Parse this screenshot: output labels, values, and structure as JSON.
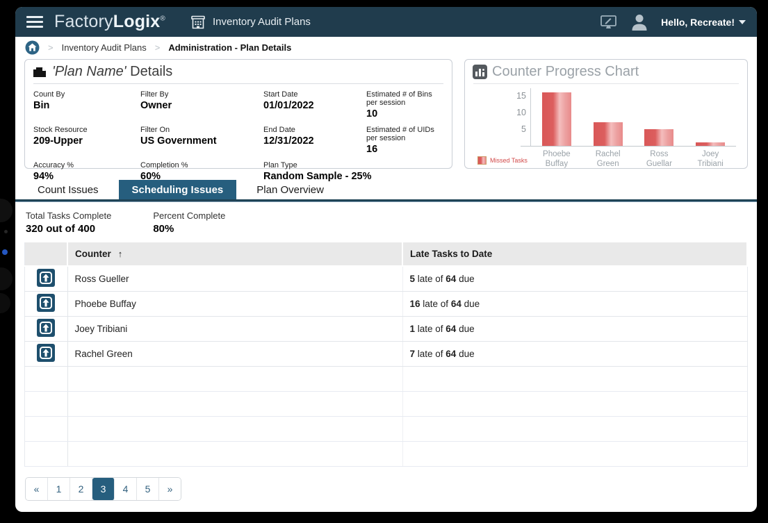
{
  "header": {
    "logo_factory": "Factory",
    "logo_logix": "Logix",
    "logo_reg": "®",
    "module_title": "Inventory Audit Plans",
    "greeting": "Hello, Recreate!"
  },
  "breadcrumb": {
    "separator": ">",
    "parent": "Inventory Audit Plans",
    "current": "Administration - Plan Details"
  },
  "details_panel": {
    "title_plan": "'Plan Name'",
    "title_rest": " Details",
    "fields": [
      {
        "label": "Count By",
        "value": "Bin"
      },
      {
        "label": "Filter By",
        "value": "Owner"
      },
      {
        "label": "Start Date",
        "value": "01/01/2022"
      },
      {
        "label": "Estimated # of Bins per session",
        "value": "10"
      },
      {
        "label": "Stock Resource",
        "value": "209-Upper"
      },
      {
        "label": "Filter On",
        "value": "US Government"
      },
      {
        "label": "End Date",
        "value": "12/31/2022"
      },
      {
        "label": "Estimated # of UIDs per session",
        "value": "16"
      },
      {
        "label": "Accuracy %",
        "value": "94%"
      },
      {
        "label": "Completion %",
        "value": "60%"
      },
      {
        "label": "Plan Type",
        "value": "Random Sample - 25%"
      }
    ]
  },
  "chart_panel": {
    "title": "Counter Progress Chart"
  },
  "chart_data": {
    "type": "bar",
    "title": "Counter Progress Chart",
    "categories": [
      "Phoebe Buffay",
      "Rachel Green",
      "Ross Guellar",
      "Joey Tribiani"
    ],
    "values": [
      16,
      7,
      5,
      1
    ],
    "series_name": "Missed Tasks",
    "yticks": [
      5,
      10,
      15
    ],
    "ylim": [
      0,
      17.5
    ],
    "bar_color": "#dc5c5c",
    "legend_position": "bottom-left",
    "grid": false
  },
  "tabs": [
    {
      "label": "Count Issues",
      "active": false
    },
    {
      "label": "Scheduling Issues",
      "active": true
    },
    {
      "label": "Plan Overview",
      "active": false
    }
  ],
  "summary": [
    {
      "label": "Total Tasks Complete",
      "value": "320 out of 400"
    },
    {
      "label": "Percent Complete",
      "value": "80%"
    }
  ],
  "table": {
    "columns": [
      "Counter",
      "Late Tasks to Date"
    ],
    "sort_icon": "↑",
    "late_word": " late of ",
    "due_word": " due",
    "rows": [
      {
        "name": "Ross Gueller",
        "late": "5",
        "due": "64"
      },
      {
        "name": "Phoebe Buffay",
        "late": "16",
        "due": "64"
      },
      {
        "name": "Joey Tribiani",
        "late": "1",
        "due": "64"
      },
      {
        "name": "Rachel Green",
        "late": "7",
        "due": "64"
      }
    ],
    "empty_rows": 4
  },
  "pagination": {
    "items": [
      "«",
      "1",
      "2",
      "3",
      "4",
      "5",
      "»"
    ],
    "active_index": 3
  },
  "colors": {
    "header_bg": "#203c4d",
    "accent": "#265e7e",
    "bar_red": "#dc5c5c",
    "icon_square": "#1e4f6d"
  }
}
